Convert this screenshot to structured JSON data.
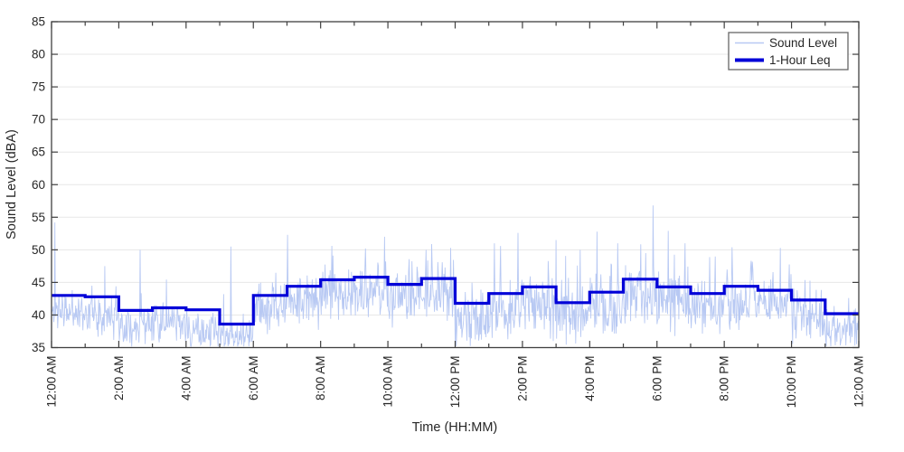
{
  "figure": {
    "background": "#ffffff"
  },
  "chart_data": {
    "type": "line",
    "title": "",
    "xlabel": "Time (HH:MM)",
    "ylabel": "Sound Level (dBA)",
    "ylim": [
      35,
      85
    ],
    "x_range_minutes": [
      0,
      1440
    ],
    "grid": "horizontal",
    "y_tick_labels": [
      "35",
      "40",
      "45",
      "50",
      "55",
      "60",
      "65",
      "70",
      "75",
      "80",
      "85"
    ],
    "y_tick_values": [
      35,
      40,
      45,
      50,
      55,
      60,
      65,
      70,
      75,
      80,
      85
    ],
    "x_major_tick_interval_minutes": 120,
    "x_minor_tick_interval_minutes": 60,
    "x_major_tick_labels": [
      "12:00 AM",
      "2:00 AM",
      "4:00 AM",
      "6:00 AM",
      "8:00 AM",
      "10:00 AM",
      "12:00 PM",
      "2:00 PM",
      "4:00 PM",
      "6:00 PM",
      "8:00 PM",
      "10:00 PM",
      "12:00 AM"
    ],
    "legend": {
      "position": "top-right",
      "entries": [
        {
          "label": "Sound Level",
          "color": "#b8c9f3",
          "line_width": 1.5
        },
        {
          "label": "1-Hour Leq",
          "color": "#0000d8",
          "line_width": 4
        }
      ]
    },
    "colors": {
      "grid": "#e7e7e7",
      "frame": "#404040",
      "text": "#262626"
    },
    "series": [
      {
        "name": "Sound Level",
        "style": "noisy-line",
        "color": "#b8c9f3",
        "width": 0.9,
        "sample_interval_minutes": 1,
        "seed": 11,
        "value_floor_dba": 35.15,
        "value_ceiling_dba": 57,
        "hourly_profile_mean_sd_spikerate_spikegain": [
          [
            40.6,
            1.3,
            0.05,
            6
          ],
          [
            40.2,
            1.5,
            0.07,
            5
          ],
          [
            38.4,
            1.5,
            0.09,
            6
          ],
          [
            38.6,
            1.6,
            0.08,
            5
          ],
          [
            37.4,
            1.5,
            0.05,
            5
          ],
          [
            36.6,
            1.1,
            0.06,
            6
          ],
          [
            40.8,
            1.8,
            0.09,
            6
          ],
          [
            42.4,
            1.8,
            0.09,
            6
          ],
          [
            43.0,
            1.8,
            0.09,
            5
          ],
          [
            43.4,
            1.8,
            0.09,
            5
          ],
          [
            42.4,
            1.9,
            0.09,
            5
          ],
          [
            42.8,
            2.0,
            0.1,
            6
          ],
          [
            39.3,
            2.3,
            0.1,
            7
          ],
          [
            40.6,
            2.3,
            0.1,
            7
          ],
          [
            41.4,
            2.3,
            0.09,
            7
          ],
          [
            39.6,
            2.3,
            0.09,
            7
          ],
          [
            41.0,
            2.2,
            0.09,
            7
          ],
          [
            42.8,
            2.0,
            0.09,
            7
          ],
          [
            42.0,
            2.1,
            0.09,
            6
          ],
          [
            41.0,
            2.1,
            0.09,
            6
          ],
          [
            41.8,
            1.9,
            0.09,
            6
          ],
          [
            41.4,
            1.9,
            0.09,
            5
          ],
          [
            39.8,
            2.0,
            0.08,
            6
          ],
          [
            37.6,
            1.7,
            0.07,
            6
          ]
        ],
        "notable_spikes_minute_dba": [
          [
            6,
            54.2
          ],
          [
            95,
            47.5
          ],
          [
            158,
            50.0
          ],
          [
            320,
            50.5
          ],
          [
            421,
            52.3
          ],
          [
            500,
            50.6
          ],
          [
            560,
            50.2
          ],
          [
            594,
            52.0
          ],
          [
            668,
            50.0
          ],
          [
            712,
            50.3
          ],
          [
            790,
            51.0
          ],
          [
            832,
            52.6
          ],
          [
            900,
            51.5
          ],
          [
            943,
            50.0
          ],
          [
            973,
            52.8
          ],
          [
            1010,
            51.0
          ],
          [
            1073,
            56.8
          ],
          [
            1100,
            52.9
          ],
          [
            1130,
            51.0
          ],
          [
            1214,
            50.4
          ],
          [
            1300,
            50.3
          ]
        ]
      },
      {
        "name": "1-Hour Leq",
        "style": "step",
        "color": "#0000d8",
        "width": 3.2,
        "hourly_leq_dba": [
          43.0,
          42.8,
          40.7,
          41.1,
          40.8,
          38.6,
          43.0,
          44.4,
          45.4,
          45.8,
          44.7,
          45.6,
          41.8,
          43.3,
          44.3,
          41.9,
          43.5,
          45.5,
          44.3,
          43.3,
          44.4,
          43.8,
          42.3,
          40.2
        ]
      }
    ]
  }
}
